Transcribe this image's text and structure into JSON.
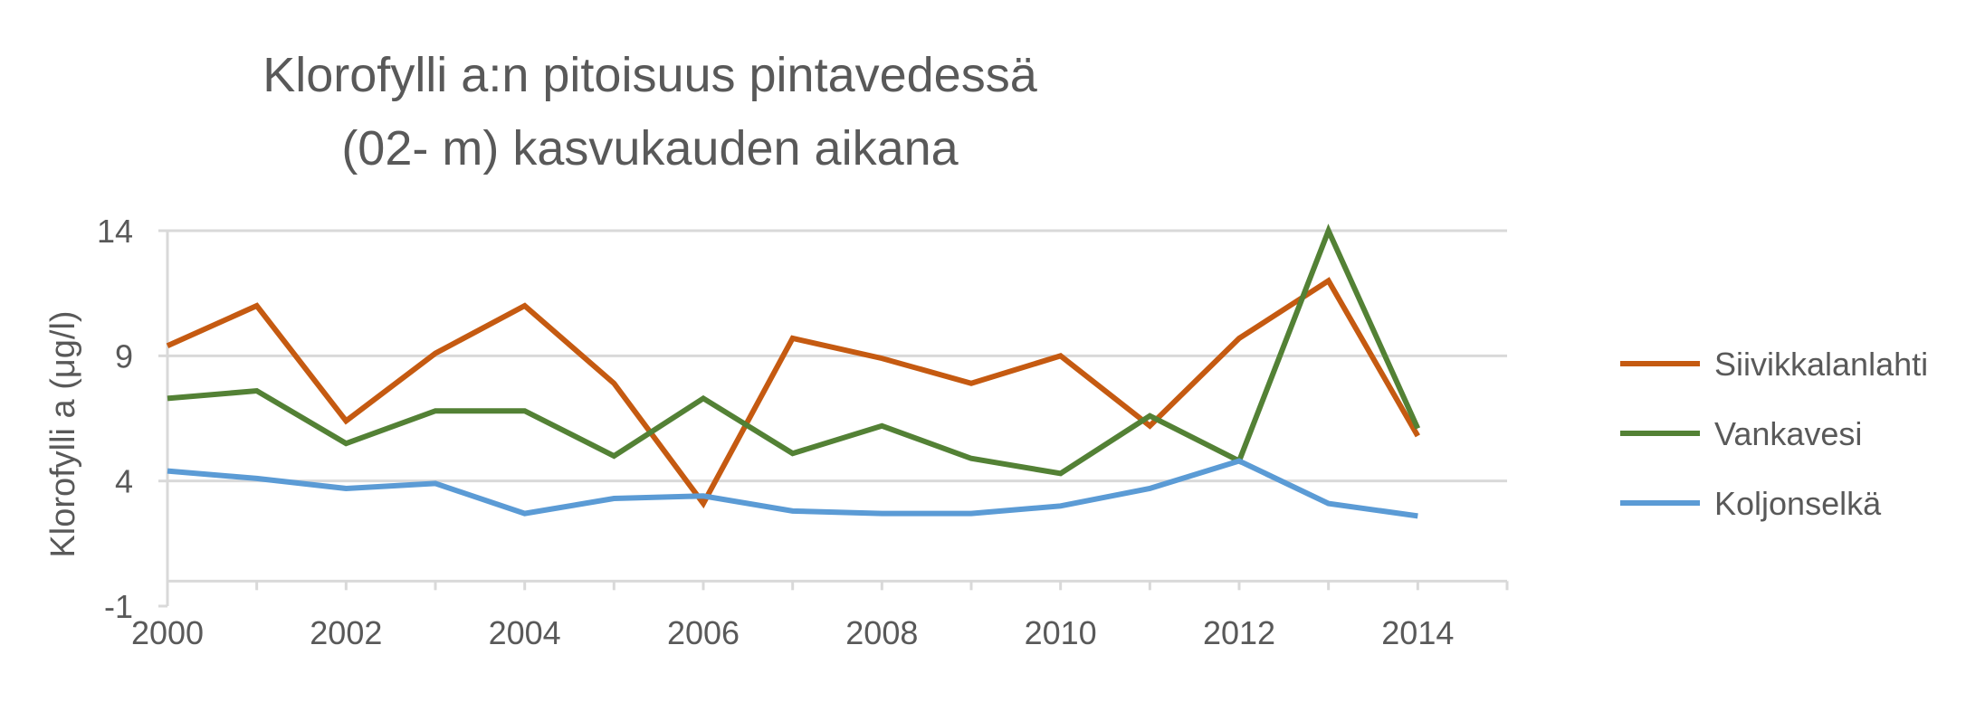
{
  "chart_data": {
    "type": "line",
    "title_lines": [
      "Klorofylli a:n pitoisuus pintavedessä",
      "(02- m) kasvukauden aikana"
    ],
    "ylabel": "Klorofylli a (μg/l)",
    "xlabel": "",
    "xlim": [
      2000,
      2015
    ],
    "ylim": [
      -1,
      14
    ],
    "x_ticks": [
      2000,
      2002,
      2004,
      2006,
      2008,
      2010,
      2012,
      2014
    ],
    "y_ticks": [
      -1,
      4,
      9,
      14
    ],
    "grid": true,
    "legend_position": "right",
    "x": [
      2000,
      2001,
      2002,
      2003,
      2004,
      2005,
      2006,
      2007,
      2008,
      2009,
      2010,
      2011,
      2012,
      2013,
      2014
    ],
    "series": [
      {
        "name": "Siivikkalanlahti",
        "color": "#C55A11",
        "values": [
          9.4,
          11.0,
          6.4,
          9.1,
          11.0,
          7.9,
          3.1,
          9.7,
          8.9,
          7.9,
          9.0,
          6.2,
          9.7,
          12.0,
          5.8
        ]
      },
      {
        "name": "Vankavesi",
        "color": "#538135",
        "values": [
          7.3,
          7.6,
          5.5,
          6.8,
          6.8,
          5.0,
          7.3,
          5.1,
          6.2,
          4.9,
          4.3,
          6.6,
          4.8,
          14.0,
          6.1
        ]
      },
      {
        "name": "Koljonselkä",
        "color": "#5B9BD5",
        "values": [
          4.4,
          4.1,
          3.7,
          3.9,
          2.7,
          3.3,
          3.4,
          2.8,
          2.7,
          2.7,
          3.0,
          3.7,
          4.8,
          3.1,
          2.6
        ]
      }
    ]
  }
}
